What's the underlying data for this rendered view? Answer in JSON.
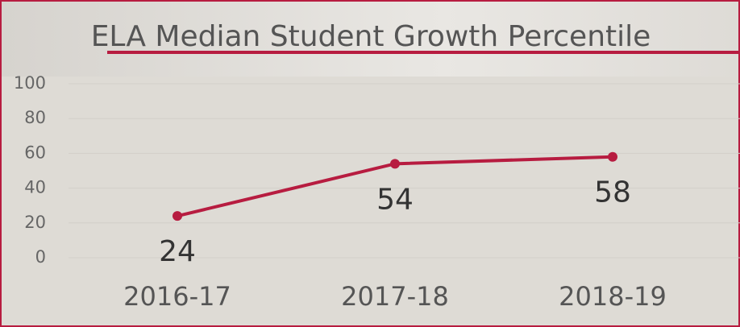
{
  "chart_data": {
    "type": "line",
    "title": "ELA Median Student Growth Percentile",
    "categories": [
      "2016-17",
      "2017-18",
      "2018-19"
    ],
    "series": [
      {
        "name": "ELA Median Student Growth Percentile",
        "color": "#b71c40",
        "values": [
          24,
          54,
          58
        ]
      }
    ],
    "ylim": [
      0,
      100
    ],
    "yticks": [
      0,
      20,
      40,
      60,
      80,
      100
    ],
    "grid": true
  }
}
